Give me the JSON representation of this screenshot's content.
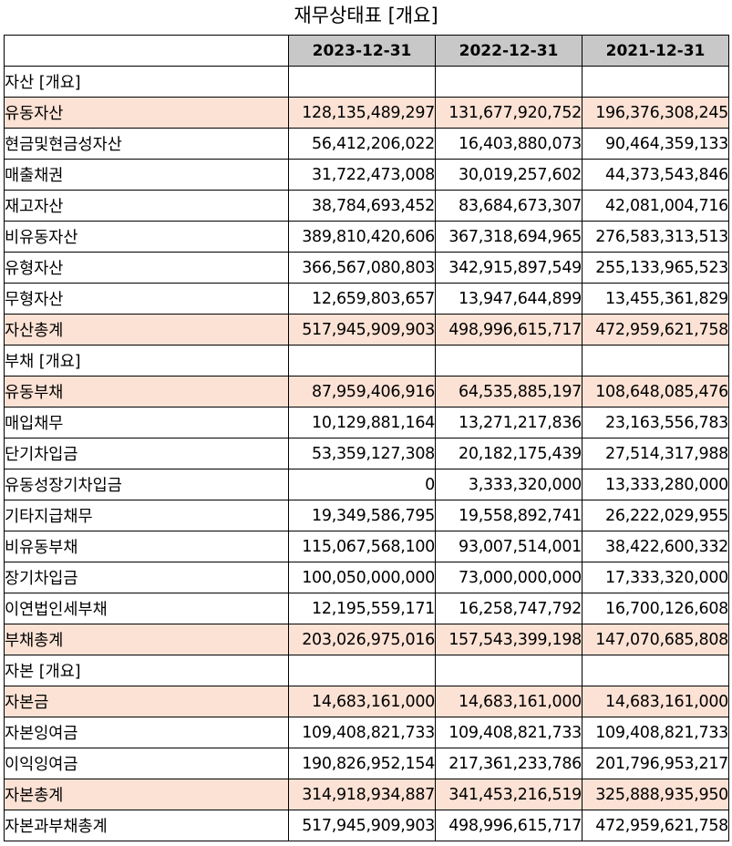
{
  "title": "재무상태표 [개요]",
  "columns": [
    "",
    "2023-12-31",
    "2022-12-31",
    "2021-12-31"
  ],
  "rows": [
    {
      "label": "자산 [개요]",
      "level": 0,
      "highlight": false,
      "values": [
        "",
        "",
        ""
      ]
    },
    {
      "label": "유동자산",
      "level": 1,
      "highlight": true,
      "values": [
        "128,135,489,297",
        "131,677,920,752",
        "196,376,308,245"
      ]
    },
    {
      "label": "현금및현금성자산",
      "level": 2,
      "highlight": false,
      "values": [
        "56,412,206,022",
        "16,403,880,073",
        "90,464,359,133"
      ]
    },
    {
      "label": "매출채권",
      "level": 2,
      "highlight": false,
      "values": [
        "31,722,473,008",
        "30,019,257,602",
        "44,373,543,846"
      ]
    },
    {
      "label": "재고자산",
      "level": 2,
      "highlight": false,
      "values": [
        "38,784,693,452",
        "83,684,673,307",
        "42,081,004,716"
      ]
    },
    {
      "label": "비유동자산",
      "level": 1,
      "highlight": false,
      "values": [
        "389,810,420,606",
        "367,318,694,965",
        "276,583,313,513"
      ]
    },
    {
      "label": "유형자산",
      "level": 2,
      "highlight": false,
      "values": [
        "366,567,080,803",
        "342,915,897,549",
        "255,133,965,523"
      ]
    },
    {
      "label": "무형자산",
      "level": 2,
      "highlight": false,
      "values": [
        "12,659,803,657",
        "13,947,644,899",
        "13,455,361,829"
      ]
    },
    {
      "label": "자산총계",
      "level": 1,
      "highlight": true,
      "values": [
        "517,945,909,903",
        "498,996,615,717",
        "472,959,621,758"
      ]
    },
    {
      "label": "부채 [개요]",
      "level": 0,
      "highlight": false,
      "values": [
        "",
        "",
        ""
      ]
    },
    {
      "label": "유동부채",
      "level": 1,
      "highlight": true,
      "values": [
        "87,959,406,916",
        "64,535,885,197",
        "108,648,085,476"
      ]
    },
    {
      "label": "매입채무",
      "level": 2,
      "highlight": false,
      "values": [
        "10,129,881,164",
        "13,271,217,836",
        "23,163,556,783"
      ]
    },
    {
      "label": "단기차입금",
      "level": 2,
      "highlight": false,
      "values": [
        "53,359,127,308",
        "20,182,175,439",
        "27,514,317,988"
      ]
    },
    {
      "label": "유동성장기차입금",
      "level": 2,
      "highlight": false,
      "values": [
        "0",
        "3,333,320,000",
        "13,333,280,000"
      ]
    },
    {
      "label": "기타지급채무",
      "level": 2,
      "highlight": false,
      "values": [
        "19,349,586,795",
        "19,558,892,741",
        "26,222,029,955"
      ]
    },
    {
      "label": "비유동부채",
      "level": 1,
      "highlight": false,
      "values": [
        "115,067,568,100",
        "93,007,514,001",
        "38,422,600,332"
      ]
    },
    {
      "label": "장기차입금",
      "level": 2,
      "highlight": false,
      "values": [
        "100,050,000,000",
        "73,000,000,000",
        "17,333,320,000"
      ]
    },
    {
      "label": "이연법인세부채",
      "level": 2,
      "highlight": false,
      "values": [
        "12,195,559,171",
        "16,258,747,792",
        "16,700,126,608"
      ]
    },
    {
      "label": "부채총계",
      "level": 1,
      "highlight": true,
      "values": [
        "203,026,975,016",
        "157,543,399,198",
        "147,070,685,808"
      ]
    },
    {
      "label": "자본 [개요]",
      "level": 0,
      "highlight": false,
      "values": [
        "",
        "",
        ""
      ]
    },
    {
      "label": "자본금",
      "level": 1,
      "highlight": true,
      "values": [
        "14,683,161,000",
        "14,683,161,000",
        "14,683,161,000"
      ]
    },
    {
      "label": "자본잉여금",
      "level": 1,
      "highlight": false,
      "values": [
        "109,408,821,733",
        "109,408,821,733",
        "109,408,821,733"
      ]
    },
    {
      "label": "이익잉여금",
      "level": 1,
      "highlight": false,
      "values": [
        "190,826,952,154",
        "217,361,233,786",
        "201,796,953,217"
      ]
    },
    {
      "label": "자본총계",
      "level": 1,
      "highlight": true,
      "values": [
        "314,918,934,887",
        "341,453,216,519",
        "325,888,935,950"
      ]
    },
    {
      "label": "자본과부채총계",
      "level": 0,
      "highlight": false,
      "values": [
        "517,945,909,903",
        "498,996,615,717",
        "472,959,621,758"
      ]
    }
  ]
}
